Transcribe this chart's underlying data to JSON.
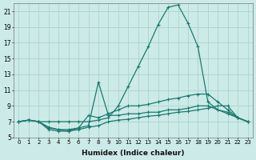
{
  "xlabel": "Humidex (Indice chaleur)",
  "bg_color": "#cceae8",
  "grid_color": "#aad4d0",
  "line_color": "#1a7a6e",
  "xlim": [
    -0.5,
    23.5
  ],
  "ylim": [
    5,
    22
  ],
  "xticks": [
    0,
    1,
    2,
    3,
    4,
    5,
    6,
    7,
    8,
    9,
    10,
    11,
    12,
    13,
    14,
    15,
    16,
    17,
    18,
    19,
    20,
    21,
    22,
    23
  ],
  "yticks": [
    5,
    7,
    9,
    11,
    13,
    15,
    17,
    19,
    21
  ],
  "series": [
    {
      "x": [
        0,
        1,
        2,
        3,
        4,
        5,
        6,
        7,
        8,
        9,
        10,
        11,
        12,
        13,
        14,
        15,
        16,
        17,
        18,
        19,
        20,
        21,
        22,
        23
      ],
      "y": [
        7.0,
        7.2,
        7.0,
        7.0,
        7.0,
        7.0,
        7.0,
        7.0,
        7.2,
        7.5,
        9.0,
        11.5,
        14.0,
        16.5,
        19.3,
        21.5,
        21.8,
        19.5,
        16.5,
        9.5,
        8.5,
        8.0,
        7.5,
        7.0
      ]
    },
    {
      "x": [
        0,
        1,
        2,
        3,
        4,
        5,
        6,
        7,
        8,
        9,
        10,
        11,
        12,
        13,
        14,
        15,
        16,
        17,
        18,
        19,
        20,
        21,
        22,
        23
      ],
      "y": [
        7.0,
        7.2,
        7.0,
        6.2,
        6.0,
        6.0,
        6.2,
        6.5,
        12.0,
        7.8,
        7.8,
        8.0,
        8.0,
        8.2,
        8.2,
        8.5,
        8.5,
        8.7,
        9.0,
        9.0,
        8.5,
        8.2,
        7.5,
        7.0
      ]
    },
    {
      "x": [
        0,
        1,
        2,
        3,
        4,
        5,
        6,
        7,
        8,
        9,
        10,
        11,
        12,
        13,
        14,
        15,
        16,
        17,
        18,
        19,
        20,
        21,
        22,
        23
      ],
      "y": [
        7.0,
        7.2,
        7.0,
        6.0,
        5.8,
        5.8,
        6.0,
        6.3,
        6.5,
        7.0,
        7.2,
        7.3,
        7.5,
        7.7,
        7.8,
        8.0,
        8.2,
        8.3,
        8.5,
        8.7,
        9.0,
        9.0,
        7.5,
        7.0
      ]
    },
    {
      "x": [
        0,
        1,
        2,
        3,
        4,
        5,
        6,
        7,
        8,
        9,
        10,
        11,
        12,
        13,
        14,
        15,
        16,
        17,
        18,
        19,
        20,
        21,
        22,
        23
      ],
      "y": [
        7.0,
        7.2,
        7.0,
        6.3,
        6.0,
        5.8,
        6.2,
        7.8,
        7.5,
        8.0,
        8.5,
        9.0,
        9.0,
        9.2,
        9.5,
        9.8,
        10.0,
        10.3,
        10.5,
        10.5,
        9.5,
        8.5,
        7.5,
        7.0
      ]
    }
  ]
}
